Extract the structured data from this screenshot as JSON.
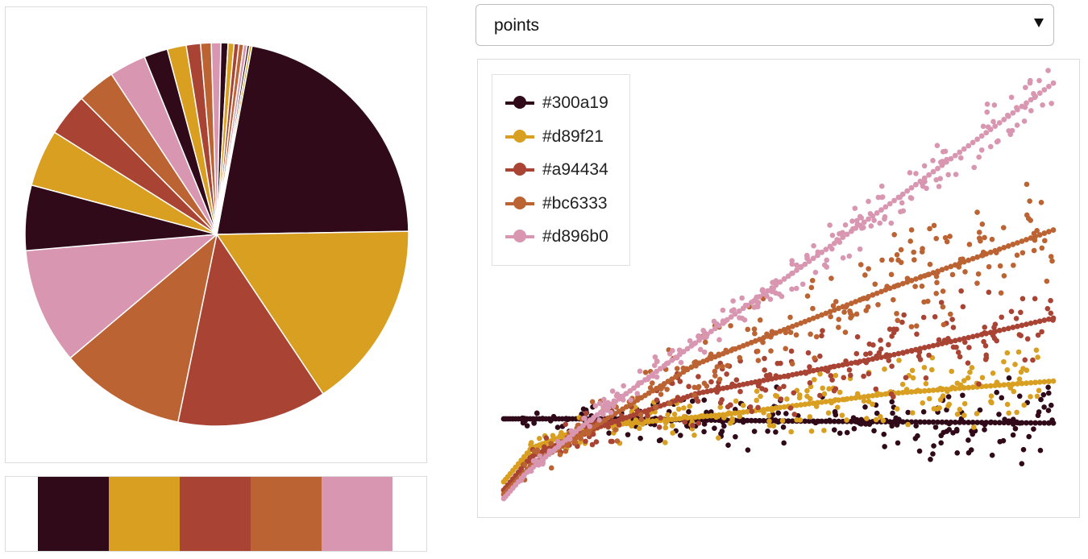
{
  "selector": {
    "selected_value": "points"
  },
  "palette": [
    {
      "name": "#300a19",
      "color": "#300a19"
    },
    {
      "name": "#d89f21",
      "color": "#d89f21"
    },
    {
      "name": "#a94434",
      "color": "#a94434"
    },
    {
      "name": "#bc6333",
      "color": "#bc6333"
    },
    {
      "name": "#d896b0",
      "color": "#d896b0"
    }
  ],
  "chart_data": [
    {
      "type": "pie",
      "title": "",
      "slices": [
        {
          "value": 21.8,
          "color": "#300a19"
        },
        {
          "value": 15.9,
          "color": "#d89f21"
        },
        {
          "value": 12.6,
          "color": "#a94434"
        },
        {
          "value": 10.6,
          "color": "#bc6333"
        },
        {
          "value": 9.8,
          "color": "#d896b0"
        },
        {
          "value": 5.5,
          "color": "#300a19"
        },
        {
          "value": 4.8,
          "color": "#d89f21"
        },
        {
          "value": 3.6,
          "color": "#a94434"
        },
        {
          "value": 3.2,
          "color": "#bc6333"
        },
        {
          "value": 3.1,
          "color": "#d896b0"
        },
        {
          "value": 2.0,
          "color": "#300a19"
        },
        {
          "value": 1.6,
          "color": "#d89f21"
        },
        {
          "value": 1.2,
          "color": "#a94434"
        },
        {
          "value": 0.9,
          "color": "#bc6333"
        },
        {
          "value": 0.8,
          "color": "#d896b0"
        },
        {
          "value": 0.6,
          "color": "#300a19"
        },
        {
          "value": 0.5,
          "color": "#d89f21"
        },
        {
          "value": 0.4,
          "color": "#a94434"
        },
        {
          "value": 0.4,
          "color": "#bc6333"
        },
        {
          "value": 0.3,
          "color": "#d896b0"
        },
        {
          "value": 0.2,
          "color": "#300a19"
        },
        {
          "value": 0.2,
          "color": "#d89f21"
        }
      ]
    },
    {
      "type": "scatter",
      "title": "",
      "xlabel": "",
      "ylabel": "",
      "grid": false,
      "legend": "top-left",
      "xlim": [
        0,
        1
      ],
      "ylim": [
        0,
        1
      ],
      "series": [
        {
          "name": "#300a19",
          "color": "#300a19",
          "points": 220,
          "spread": 0.12,
          "trend": [
            [
              0,
              0.19
            ],
            [
              0.2,
              0.19
            ],
            [
              0.5,
              0.185
            ],
            [
              1,
              0.18
            ]
          ]
        },
        {
          "name": "#d89f21",
          "color": "#d89f21",
          "points": 220,
          "spread": 0.11,
          "trend": [
            [
              0,
              0.04
            ],
            [
              0.05,
              0.12
            ],
            [
              0.15,
              0.17
            ],
            [
              0.4,
              0.2
            ],
            [
              0.7,
              0.25
            ],
            [
              1,
              0.28
            ]
          ]
        },
        {
          "name": "#a94434",
          "color": "#a94434",
          "points": 220,
          "spread": 0.14,
          "trend": [
            [
              0,
              0.02
            ],
            [
              0.05,
              0.1
            ],
            [
              0.15,
              0.16
            ],
            [
              0.35,
              0.25
            ],
            [
              0.7,
              0.34
            ],
            [
              1,
              0.43
            ]
          ]
        },
        {
          "name": "#bc6333",
          "color": "#bc6333",
          "points": 220,
          "spread": 0.16,
          "trend": [
            [
              0,
              0.01
            ],
            [
              0.05,
              0.08
            ],
            [
              0.15,
              0.16
            ],
            [
              0.35,
              0.32
            ],
            [
              0.7,
              0.5
            ],
            [
              1,
              0.64
            ]
          ]
        },
        {
          "name": "#d896b0",
          "color": "#d896b0",
          "points": 220,
          "spread": 0.08,
          "trend": [
            [
              0,
              0
            ],
            [
              0.04,
              0.06
            ],
            [
              0.15,
              0.18
            ],
            [
              0.4,
              0.42
            ],
            [
              0.7,
              0.7
            ],
            [
              1,
              0.99
            ]
          ]
        }
      ]
    }
  ]
}
